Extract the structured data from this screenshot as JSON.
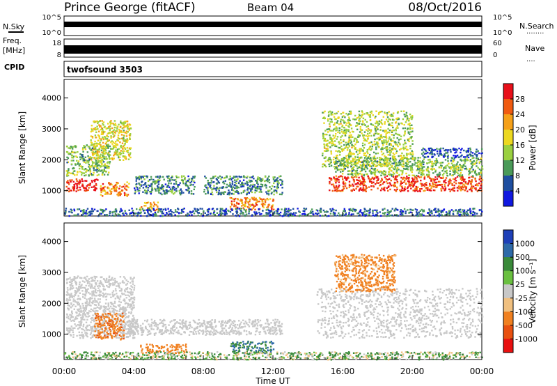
{
  "header": {
    "station": "Prince George (fitACF)",
    "beam": "Beam 04",
    "date": "08/Oct/2016"
  },
  "strips": {
    "nsky_label": "N.Sky",
    "nsearch_label": "N.Search",
    "nsearch_dots": "........",
    "noise_ticks": [
      "10^5",
      "10^0"
    ],
    "freq_label_line1": "Freq.",
    "freq_label_line2": "[MHz]",
    "freq_ticks": [
      "18",
      "8"
    ],
    "nave_label": "Nave",
    "nave_dots": "....",
    "nave_ticks": [
      "60",
      "0"
    ],
    "cpid_label": "CPID",
    "cpid_value": "twofsound 3503"
  },
  "colorbars": {
    "power": {
      "label": "Power [dB]",
      "ticks": [
        "28",
        "24",
        "20",
        "16",
        "12",
        "8",
        "4"
      ],
      "colors": [
        "#e8101a",
        "#f05a10",
        "#f5a018",
        "#ecd820",
        "#9ad040",
        "#4a9a58",
        "#1e4ea0",
        "#1018e0"
      ]
    },
    "velocity": {
      "label": "Velocity [m s⁻¹]",
      "ticks": [
        "1000",
        "500",
        "100",
        "25",
        "-25",
        "-100",
        "-500",
        "-1000"
      ],
      "colors": [
        "#1e40b8",
        "#2e6aa8",
        "#3a8a3a",
        "#6ac040",
        "#c8c8c8",
        "#f0c080",
        "#f08020",
        "#e85010",
        "#e81010"
      ]
    }
  },
  "chart_data": {
    "type": "heatmap",
    "xlabel": "Time UT",
    "ylabel": "Slant Range [km]",
    "x_ticks": [
      "00:00",
      "04:00",
      "08:00",
      "12:00",
      "16:00",
      "20:00",
      "00:00"
    ],
    "y_ticks": [
      "1000",
      "2000",
      "3000",
      "4000"
    ],
    "xlim_hours": [
      0,
      24
    ],
    "ylim_km": [
      180,
      4600
    ],
    "panels": [
      {
        "quantity": "Power",
        "unit": "dB",
        "scale": [
          0,
          30
        ],
        "features": [
          {
            "t": [
              0.1,
              1.9
            ],
            "range_km": [
              1000,
              1400
            ],
            "level": 28
          },
          {
            "t": [
              0.1,
              2.6
            ],
            "range_km": [
              1500,
              2500
            ],
            "level": 12
          },
          {
            "t": [
              1.5,
              3.8
            ],
            "range_km": [
              2000,
              3300
            ],
            "level": 16
          },
          {
            "t": [
              2.0,
              3.7
            ],
            "range_km": [
              850,
              1300
            ],
            "level": 22
          },
          {
            "t": [
              4.0,
              7.5
            ],
            "range_km": [
              900,
              1500
            ],
            "level": 8
          },
          {
            "t": [
              4.3,
              5.5
            ],
            "range_km": [
              380,
              650
            ],
            "level": 20
          },
          {
            "t": [
              8.0,
              12.5
            ],
            "range_km": [
              900,
              1500
            ],
            "level": 8
          },
          {
            "t": [
              9.5,
              12.0
            ],
            "range_km": [
              400,
              800
            ],
            "level": 22
          },
          {
            "t": [
              14.8,
              20.0
            ],
            "range_km": [
              1800,
              3600
            ],
            "level": 14
          },
          {
            "t": [
              15.2,
              24.0
            ],
            "range_km": [
              1000,
              1500
            ],
            "level": 26
          },
          {
            "t": [
              15.5,
              24.0
            ],
            "range_km": [
              1500,
              2100
            ],
            "level": 12
          },
          {
            "t": [
              20.5,
              24.0
            ],
            "range_km": [
              2100,
              2400
            ],
            "level": 6
          },
          {
            "t": [
              0.0,
              24.0
            ],
            "range_km": [
              200,
              450
            ],
            "level": 6
          }
        ]
      },
      {
        "quantity": "Velocity",
        "unit": "m/s",
        "scale": [
          -1000,
          1000
        ],
        "features": [
          {
            "t": [
              0.1,
              4.0
            ],
            "range_km": [
              900,
              2900
            ],
            "level": 0
          },
          {
            "t": [
              1.7,
              3.4
            ],
            "range_km": [
              850,
              1700
            ],
            "level": -400
          },
          {
            "t": [
              3.6,
              12.5
            ],
            "range_km": [
              1000,
              1500
            ],
            "level": 0
          },
          {
            "t": [
              4.3,
              7.0
            ],
            "range_km": [
              400,
              700
            ],
            "level": -300
          },
          {
            "t": [
              9.5,
              12.0
            ],
            "range_km": [
              400,
              800
            ],
            "level": 300
          },
          {
            "t": [
              14.5,
              24.0
            ],
            "range_km": [
              900,
              2500
            ],
            "level": 0
          },
          {
            "t": [
              15.5,
              19.0
            ],
            "range_km": [
              2400,
              3600
            ],
            "level": -200
          },
          {
            "t": [
              0.0,
              24.0
            ],
            "range_km": [
              200,
              450
            ],
            "level": 50
          }
        ]
      }
    ]
  }
}
